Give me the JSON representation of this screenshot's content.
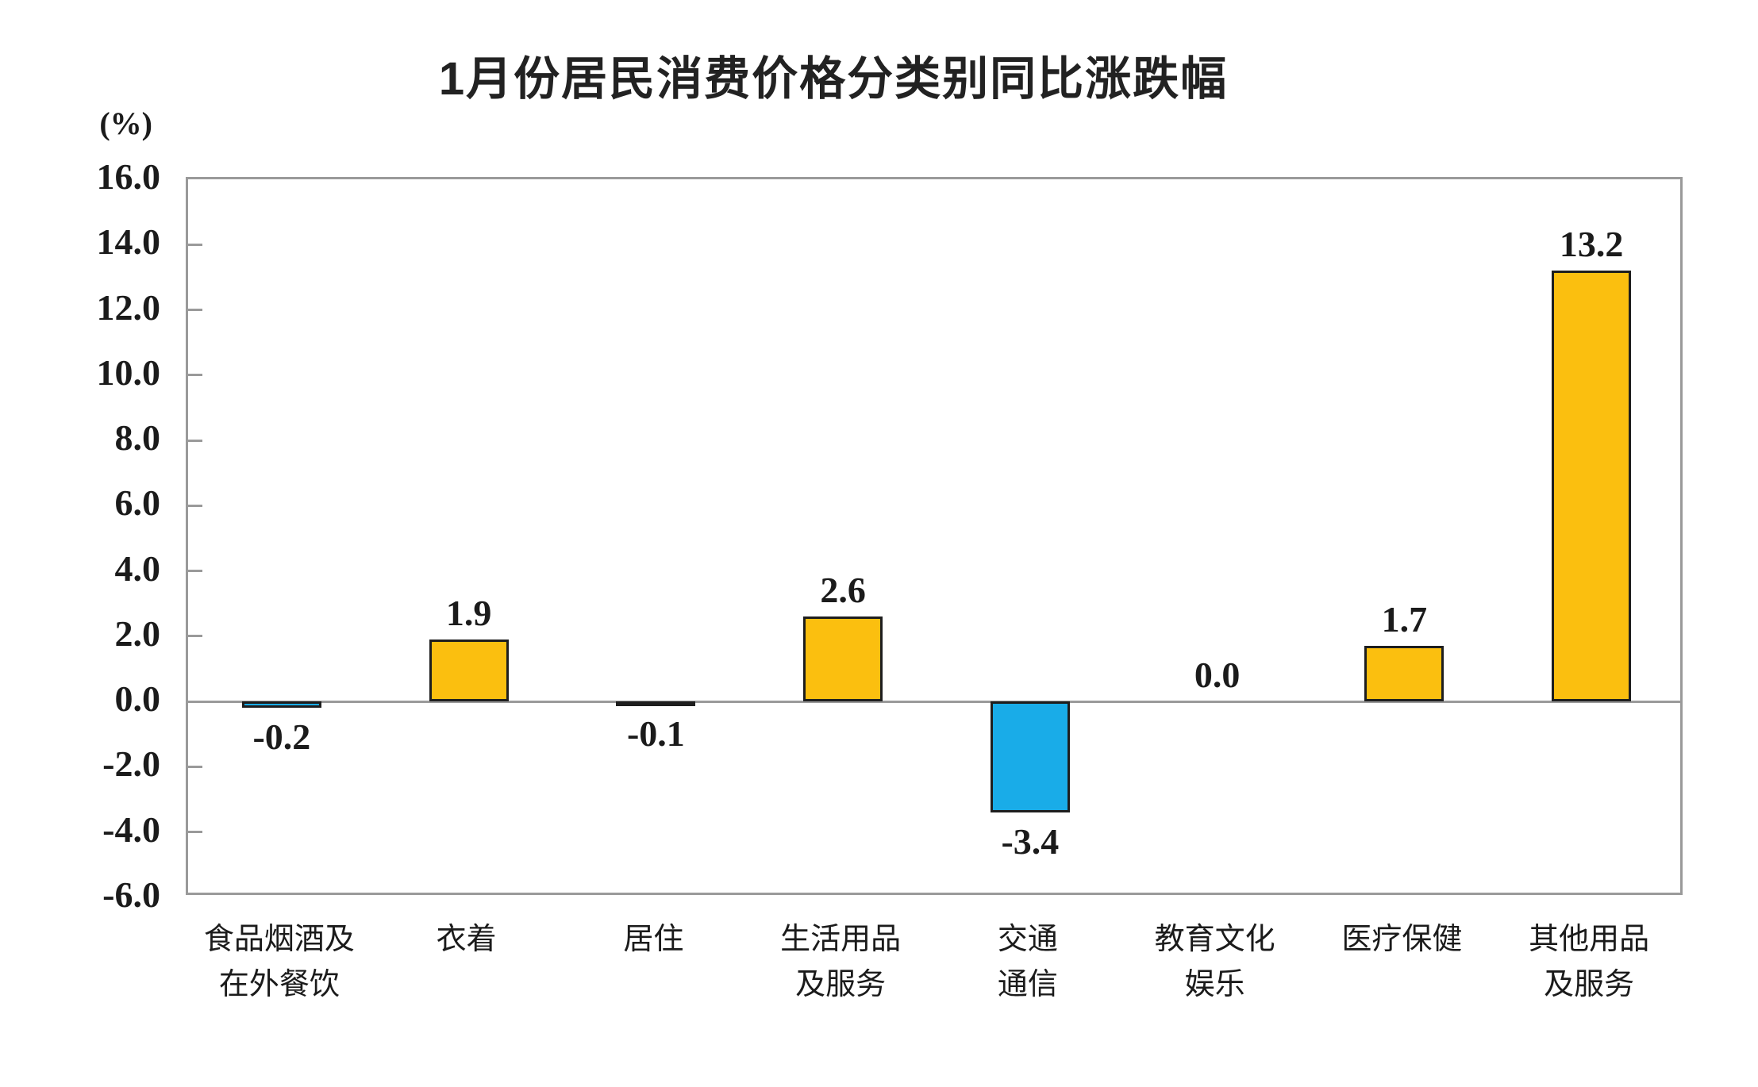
{
  "chart_data": {
    "type": "bar",
    "title": "1月份居民消费价格分类别同比涨跌幅",
    "ylabel": "(%)",
    "xlabel": "",
    "categories": [
      "食品烟酒及\n在外餐饮",
      "衣着",
      "居住",
      "生活用品\n及服务",
      "交通\n通信",
      "教育文化\n娱乐",
      "医疗保健",
      "其他用品\n及服务"
    ],
    "values": [
      -0.2,
      1.9,
      -0.1,
      2.6,
      -3.4,
      0.0,
      1.7,
      13.2
    ],
    "value_labels": [
      "-0.2",
      "1.9",
      "-0.1",
      "2.6",
      "-3.4",
      "0.0",
      "1.7",
      "13.2"
    ],
    "ylim": [
      -6.0,
      16.0
    ],
    "ytick_step": 2.0,
    "yticks": [
      "16.0",
      "14.0",
      "12.0",
      "10.0",
      "8.0",
      "6.0",
      "4.0",
      "2.0",
      "0.0",
      "-2.0",
      "-4.0",
      "-6.0"
    ],
    "grid": false,
    "legend": "none",
    "colors": {
      "positive_bar": "#fbbf0f",
      "negative_bar": "#19ace8",
      "bar_border": "#1e1e1e",
      "axis": "#9a9a9a",
      "text": "#1b1b1b"
    }
  }
}
